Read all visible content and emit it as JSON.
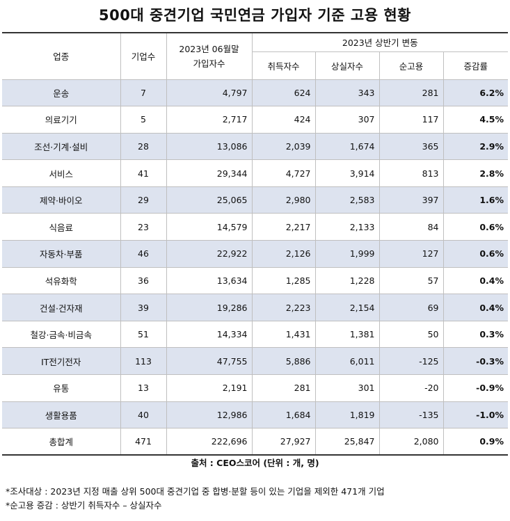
{
  "title": "500대 중견기업 국민연금 가입자 기준 고용 현황",
  "headers": {
    "industry": "업종",
    "company_count": "기업수",
    "members_line1": "2023년 06월말",
    "members_line2": "가입자수",
    "change_group": "2023년 상반기 변동",
    "acquired": "취득자수",
    "lost": "상실자수",
    "net": "순고용",
    "rate": "증감률"
  },
  "rows": [
    {
      "industry": "운송",
      "count": "7",
      "members": "4,797",
      "acquired": "624",
      "lost": "343",
      "net": "281",
      "rate": "6.2%"
    },
    {
      "industry": "의료기기",
      "count": "5",
      "members": "2,717",
      "acquired": "424",
      "lost": "307",
      "net": "117",
      "rate": "4.5%"
    },
    {
      "industry": "조선·기계·설비",
      "count": "28",
      "members": "13,086",
      "acquired": "2,039",
      "lost": "1,674",
      "net": "365",
      "rate": "2.9%"
    },
    {
      "industry": "서비스",
      "count": "41",
      "members": "29,344",
      "acquired": "4,727",
      "lost": "3,914",
      "net": "813",
      "rate": "2.8%"
    },
    {
      "industry": "제약·바이오",
      "count": "29",
      "members": "25,065",
      "acquired": "2,980",
      "lost": "2,583",
      "net": "397",
      "rate": "1.6%"
    },
    {
      "industry": "식음료",
      "count": "23",
      "members": "14,579",
      "acquired": "2,217",
      "lost": "2,133",
      "net": "84",
      "rate": "0.6%"
    },
    {
      "industry": "자동차·부품",
      "count": "46",
      "members": "22,922",
      "acquired": "2,126",
      "lost": "1,999",
      "net": "127",
      "rate": "0.6%"
    },
    {
      "industry": "석유화학",
      "count": "36",
      "members": "13,634",
      "acquired": "1,285",
      "lost": "1,228",
      "net": "57",
      "rate": "0.4%"
    },
    {
      "industry": "건설·건자재",
      "count": "39",
      "members": "19,286",
      "acquired": "2,223",
      "lost": "2,154",
      "net": "69",
      "rate": "0.4%"
    },
    {
      "industry": "철강·금속·비금속",
      "count": "51",
      "members": "14,334",
      "acquired": "1,431",
      "lost": "1,381",
      "net": "50",
      "rate": "0.3%"
    },
    {
      "industry": "IT전기전자",
      "count": "113",
      "members": "47,755",
      "acquired": "5,886",
      "lost": "6,011",
      "net": "-125",
      "rate": "-0.3%"
    },
    {
      "industry": "유통",
      "count": "13",
      "members": "2,191",
      "acquired": "281",
      "lost": "301",
      "net": "-20",
      "rate": "-0.9%"
    },
    {
      "industry": "생활용품",
      "count": "40",
      "members": "12,986",
      "acquired": "1,684",
      "lost": "1,819",
      "net": "-135",
      "rate": "-1.0%"
    }
  ],
  "total": {
    "industry": "총합계",
    "count": "471",
    "members": "222,696",
    "acquired": "27,927",
    "lost": "25,847",
    "net": "2,080",
    "rate": "0.9%"
  },
  "source": "출처 : CEO스코어 (단위 : 개, 명)",
  "notes": [
    "*조사대상 : 2023년 지정 매출 상위 500대 중견기업 중 합병·분할 등이 있는 기업을 제외한 471개 기업",
    "*순고용 증감 : 상반기 취득자수 – 상실자수"
  ],
  "colors": {
    "shade": "#dde3ef",
    "border": "#bfbfbf",
    "rule": "#333333"
  }
}
